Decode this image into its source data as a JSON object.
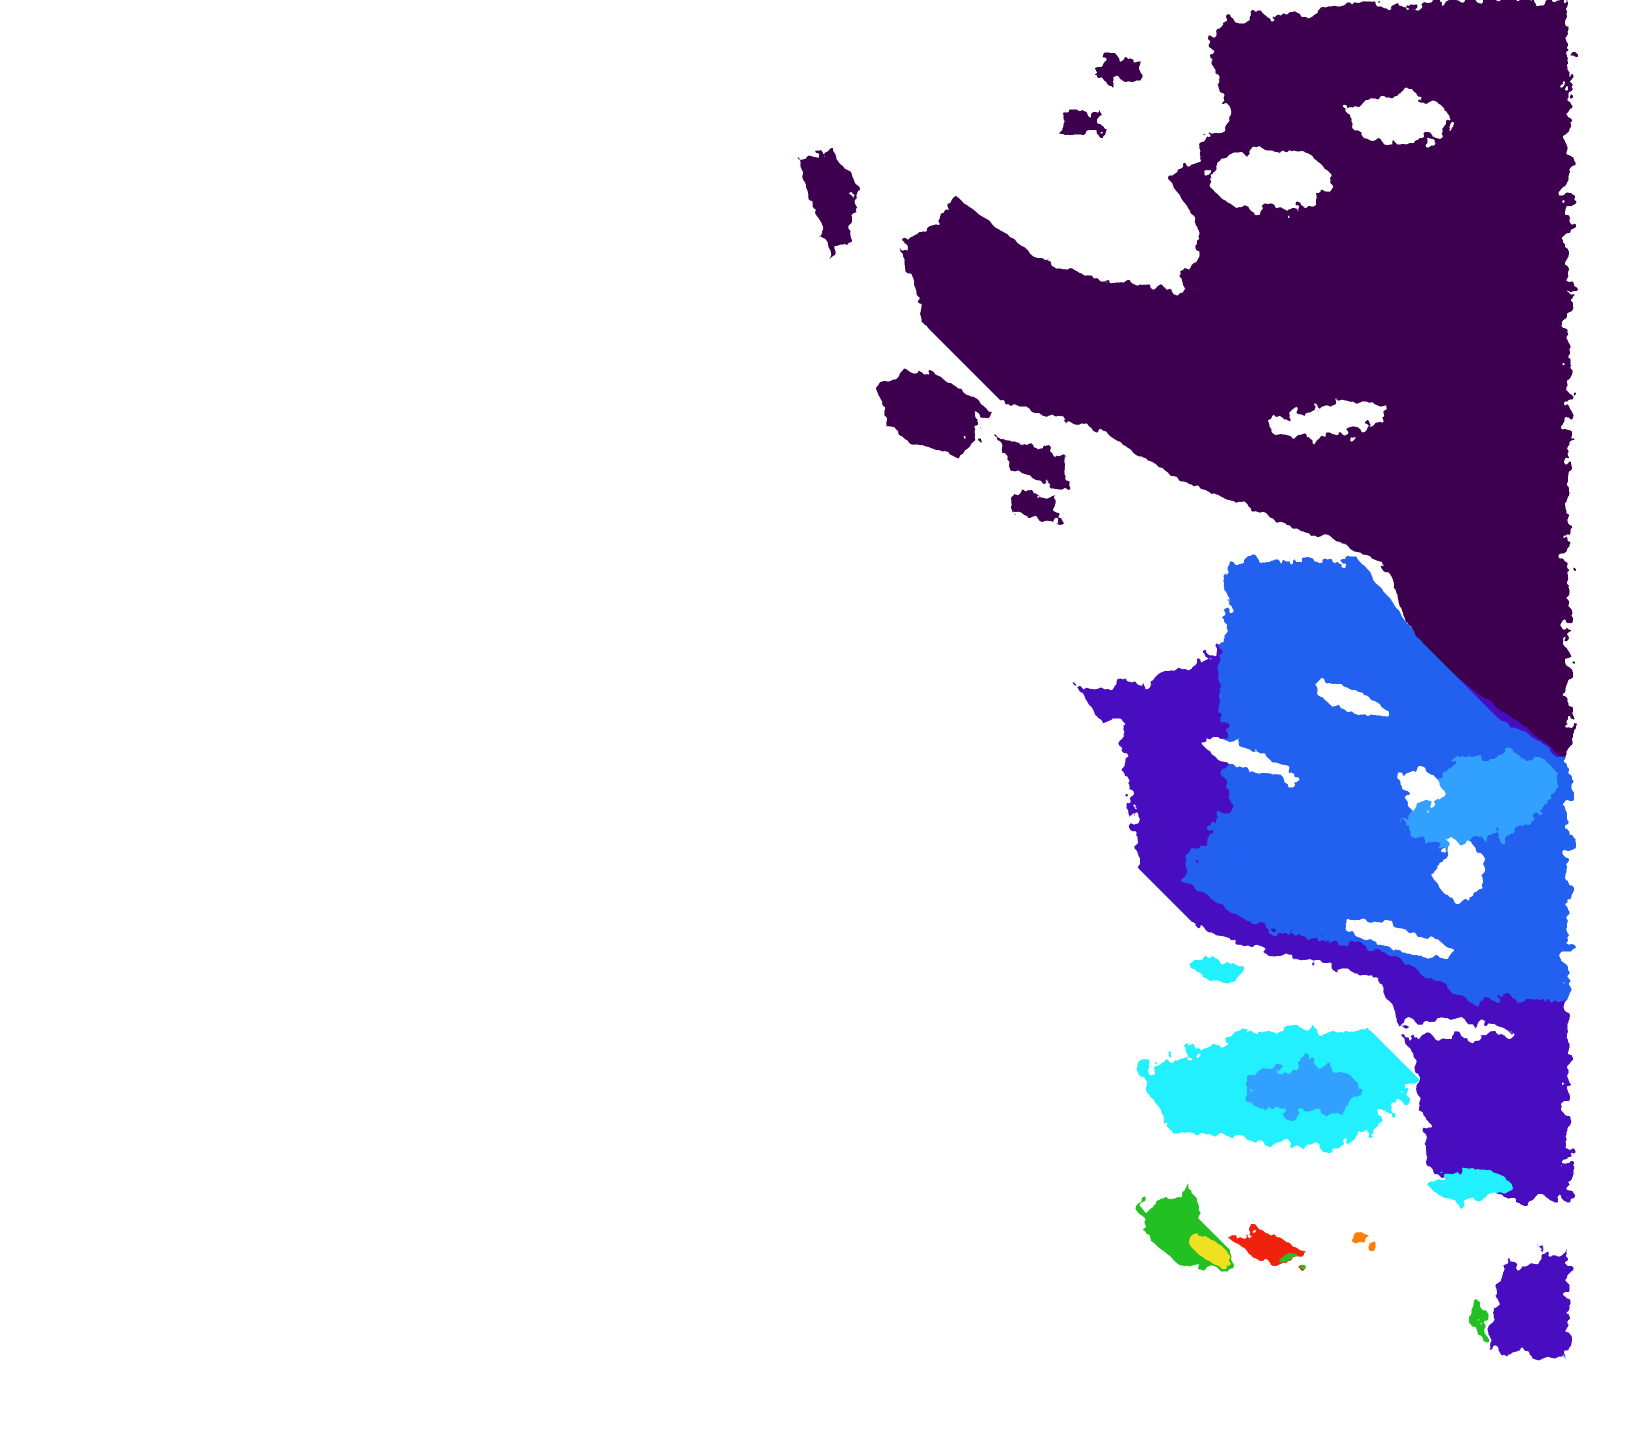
{
  "map": {
    "background": "#ffffff",
    "palette": {
      "land_or_low": "#3e0050",
      "deep_violet": "#4a10c0",
      "blue": "#2060f0",
      "light_blue": "#30a0ff",
      "cyan": "#20f0ff",
      "green": "#20c020",
      "yellow": "#f0e020",
      "orange": "#ff8000",
      "red": "#f02010"
    }
  }
}
